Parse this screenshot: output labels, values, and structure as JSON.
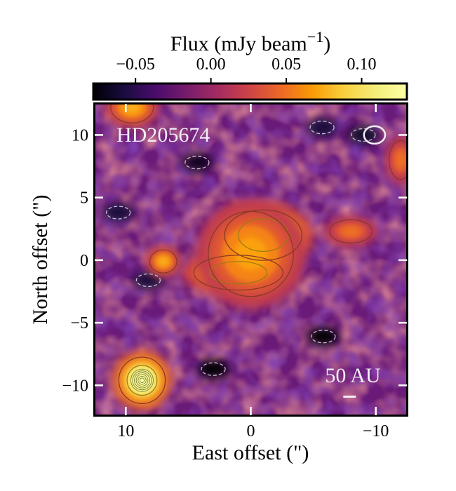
{
  "chart_data": {
    "type": "heatmap",
    "title": "",
    "target_label": "HD205674",
    "xlabel": "East offset (\")",
    "ylabel": "North offset (\")",
    "xlim": [
      12.6,
      -12.6
    ],
    "ylim": [
      -12.5,
      12.6
    ],
    "x_ticks": [
      10,
      0,
      -10
    ],
    "x_tick_labels": [
      "10",
      "0",
      "−10"
    ],
    "y_ticks": [
      10,
      5,
      0,
      -5,
      -10
    ],
    "y_tick_labels": [
      "10",
      "5",
      "0",
      "−5",
      "−10"
    ],
    "colormap": "inferno",
    "colorbar": {
      "label": "Flux (mJy beam",
      "label_superscript": "−1",
      "label_close": ")",
      "range": [
        -0.078,
        0.13
      ],
      "ticks": [
        -0.05,
        0.0,
        0.05,
        0.1
      ],
      "tick_labels": [
        "−0.05",
        "0.00",
        "0.05",
        "0.10"
      ],
      "location": "top"
    },
    "background_level": -0.01,
    "sources": [
      {
        "name": "central-disk-north",
        "x": -1.0,
        "y": 2.0,
        "peak": 0.11,
        "sx": 2.0,
        "sy": 1.3
      },
      {
        "name": "central-disk-south",
        "x": 1.0,
        "y": -1.0,
        "peak": 0.095,
        "sx": 2.3,
        "sy": 0.9
      },
      {
        "name": "central-disk-bridge",
        "x": 0.0,
        "y": 0.5,
        "peak": 0.07,
        "sx": 2.2,
        "sy": 2.2
      },
      {
        "name": "background-source",
        "x": 8.7,
        "y": -9.6,
        "peak": 0.13,
        "sx": 1.2,
        "sy": 1.2
      },
      {
        "name": "clump-left",
        "x": 7.0,
        "y": -0.1,
        "peak": 0.075,
        "sx": 0.7,
        "sy": 0.6
      },
      {
        "name": "clump-top-left",
        "x": 9.5,
        "y": 12.2,
        "peak": 0.075,
        "sx": 1.1,
        "sy": 0.8
      },
      {
        "name": "clump-right",
        "x": -8.0,
        "y": 2.3,
        "peak": 0.05,
        "sx": 1.1,
        "sy": 0.6
      },
      {
        "name": "clump-far-right",
        "x": -12.0,
        "y": 8.0,
        "peak": 0.05,
        "sx": 0.6,
        "sy": 1.0
      }
    ],
    "negative_features": [
      {
        "x": 4.3,
        "y": 7.8,
        "peak": -0.07
      },
      {
        "x": -5.8,
        "y": -6.1,
        "peak": -0.08
      },
      {
        "x": 3.0,
        "y": -8.7,
        "peak": -0.08
      },
      {
        "x": 8.2,
        "y": -1.6,
        "peak": -0.06
      },
      {
        "x": -9.0,
        "y": 10.0,
        "peak": -0.065
      },
      {
        "x": -5.7,
        "y": 10.6,
        "peak": -0.06
      },
      {
        "x": 10.6,
        "y": 3.8,
        "peak": -0.06
      }
    ],
    "beam": {
      "x": -9.9,
      "y": 10.0,
      "major": 1.7,
      "minor": 1.4
    },
    "scale_bar": {
      "label": "50 AU",
      "length_arcsec": 1.0,
      "x": -7.9,
      "y": -10.9
    }
  }
}
